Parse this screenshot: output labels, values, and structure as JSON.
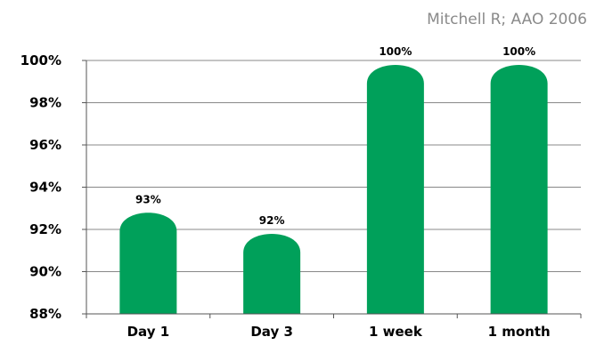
{
  "citation": "Mitchell R;  AAO 2006",
  "colors": {
    "bar": "#00a05a",
    "grid": "#888888",
    "axis": "#555555"
  },
  "chart_data": {
    "type": "bar",
    "categories": [
      "Day 1",
      "Day 3",
      "1 week",
      "1 month"
    ],
    "values": [
      93,
      92,
      100,
      100
    ],
    "data_labels": [
      "93%",
      "92%",
      "100%",
      "100%"
    ],
    "y_ticks": [
      88,
      90,
      92,
      94,
      96,
      98,
      100
    ],
    "y_tick_labels": [
      "88%",
      "90%",
      "92%",
      "94%",
      "96%",
      "98%",
      "100%"
    ],
    "ylim": [
      88,
      100
    ],
    "grid": true,
    "xlabel": "",
    "ylabel": "",
    "title": ""
  }
}
